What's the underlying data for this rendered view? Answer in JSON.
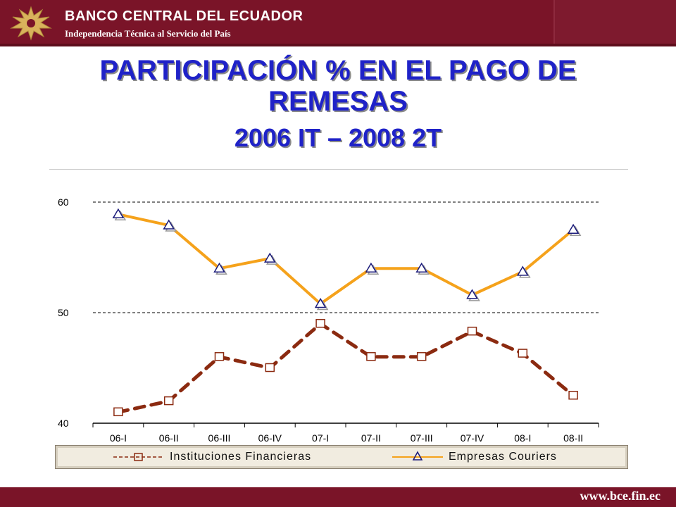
{
  "header": {
    "bank_name": "BANCO CENTRAL DEL ECUADOR",
    "tagline": "Independencia Técnica al Servicio del País",
    "colors": {
      "bar": "#7a1428",
      "title": "#1f22c8"
    }
  },
  "slide": {
    "title_line1": "PARTICIPACIÓN % EN EL PAGO DE",
    "title_line2": "REMESAS",
    "title_line3": "2006 IT – 2008 2T"
  },
  "chart_data": {
    "type": "line",
    "categories": [
      "06-I",
      "06-II",
      "06-III",
      "06-IV",
      "07-I",
      "07-II",
      "07-III",
      "07-IV",
      "08-I",
      "08-II"
    ],
    "series": [
      {
        "name": "Instituciones Financieras",
        "values": [
          41.0,
          42.0,
          46.0,
          45.0,
          49.0,
          46.0,
          46.0,
          48.3,
          46.3,
          42.5
        ],
        "color": "#8b2a10",
        "marker": "square",
        "line_style": "dashed"
      },
      {
        "name": "Empresas Couriers",
        "values": [
          58.9,
          57.9,
          54.0,
          54.9,
          50.8,
          54.0,
          54.0,
          51.6,
          53.7,
          57.5
        ],
        "color": "#f5a21b",
        "marker": "triangle",
        "line_style": "solid"
      }
    ],
    "yticks": [
      40,
      50,
      60
    ],
    "ylim": [
      40,
      60
    ],
    "grid": "dashed horizontal at 50 and 60",
    "legend_position": "bottom"
  },
  "footer": {
    "url": "www.bce.fin.ec"
  }
}
